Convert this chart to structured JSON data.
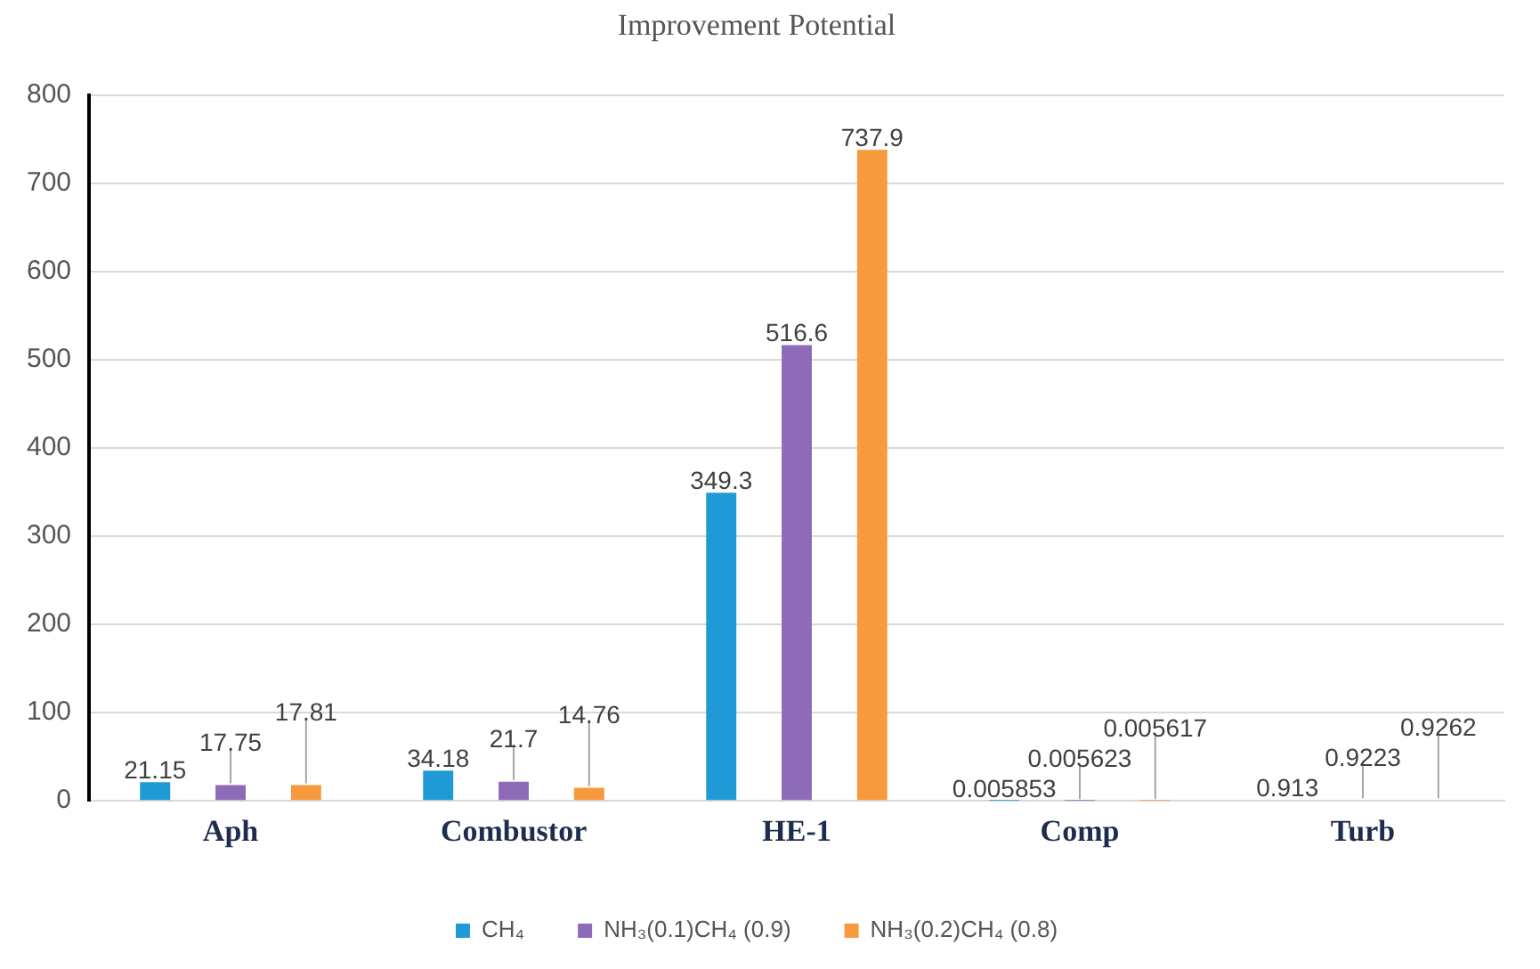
{
  "chart_data": {
    "type": "bar",
    "title": "Improvement Potential",
    "categories": [
      "Aph",
      "Combustor",
      "HE-1",
      "Comp",
      "Turb"
    ],
    "series": [
      {
        "name": "CH₄",
        "color": "#1f9ad6",
        "values": [
          21.15,
          34.18,
          349.3,
          0.005853,
          0.913
        ]
      },
      {
        "name": "NH₃(0.1)CH₄ (0.9)",
        "color": "#8e6bb8",
        "values": [
          17.75,
          21.7,
          516.6,
          0.005623,
          0.9223
        ]
      },
      {
        "name": "NH₃(0.2)CH₄ (0.8)",
        "color": "#f79a3e",
        "values": [
          17.81,
          14.76,
          737.9,
          0.005617,
          0.9262
        ]
      }
    ],
    "ylim": [
      0,
      800
    ],
    "yticks": [
      0,
      100,
      200,
      300,
      400,
      500,
      600,
      700,
      800
    ],
    "grid": "y",
    "legend": "bottom",
    "data_labels": true
  }
}
